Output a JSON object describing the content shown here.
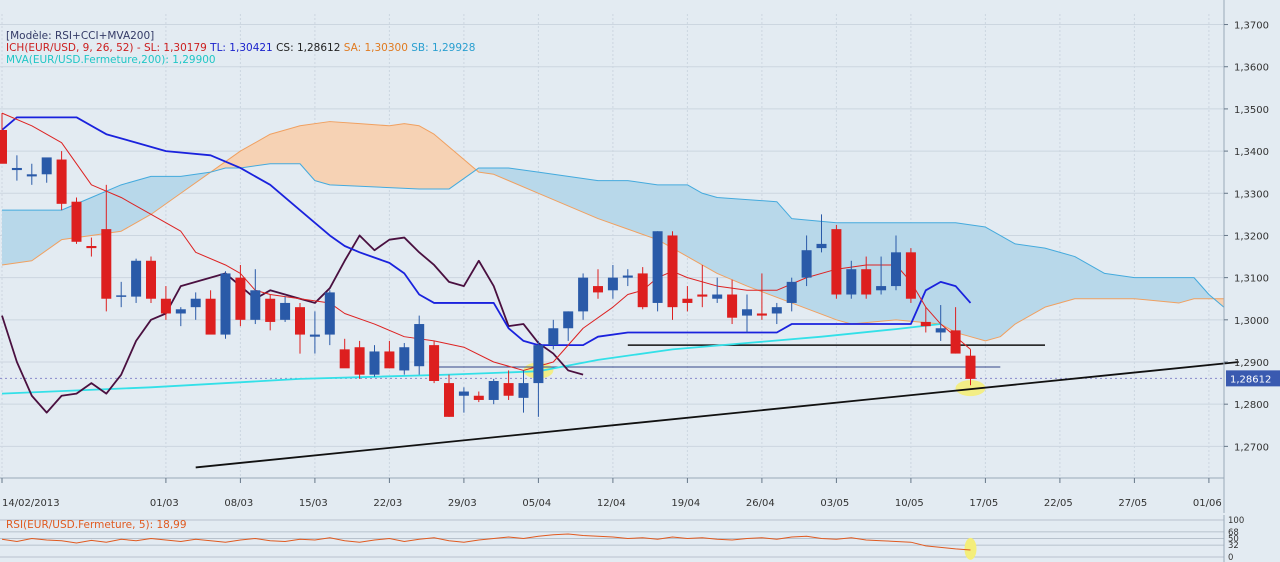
{
  "legend": {
    "model": "[Modèle: RSI+CCI+MVA200]",
    "ich": "ICH(EUR/USD, 9, 26, 52) -",
    "sl": "SL: 1,30179",
    "tl": "TL: 1,30421",
    "cs": "CS: 1,28612",
    "sa": "SA: 1,30300",
    "sb": "SB: 1,29928",
    "mva": "MVA(EUR/USD.Fermeture,200): 1,29900"
  },
  "rsi_legend": "RSI(EUR/USD.Fermeture, 5): 18,99",
  "colors": {
    "bull": "#2a5aa8",
    "bear": "#dd1f1f",
    "tenkan": "#dd2222",
    "kijun": "#1a22dd",
    "chikou": "#4a1040",
    "mva": "#33e0e8",
    "cloud_bull": "#b8d8ea",
    "cloud_bear": "#f6d2b4",
    "senkou_a": "#f0a060",
    "senkou_b": "#44aadd",
    "highlight": "#f4ee7a",
    "price_tag": "#3a5ab0"
  },
  "chart_data": {
    "type": "candlestick",
    "instrument": "EUR/USD",
    "ylim": [
      1.2625,
      1.3725
    ],
    "y_ticks": [
      "1,3700",
      "1,3600",
      "1,3500",
      "1,3400",
      "1,3300",
      "1,3200",
      "1,3100",
      "1,3000",
      "1,2900",
      "1,2800",
      "1,2700"
    ],
    "y_tick_values": [
      1.37,
      1.36,
      1.35,
      1.34,
      1.33,
      1.32,
      1.31,
      1.3,
      1.29,
      1.28,
      1.27
    ],
    "current_price_label": "1,28612",
    "current_price": 1.28612,
    "x_ticks": [
      {
        "label": "14/02/2013",
        "x": 0
      },
      {
        "label": "01/03",
        "x": 11
      },
      {
        "label": "08/03",
        "x": 16
      },
      {
        "label": "15/03",
        "x": 21
      },
      {
        "label": "22/03",
        "x": 26
      },
      {
        "label": "29/03",
        "x": 31
      },
      {
        "label": "05/04",
        "x": 36
      },
      {
        "label": "12/04",
        "x": 41
      },
      {
        "label": "19/04",
        "x": 46
      },
      {
        "label": "26/04",
        "x": 51
      },
      {
        "label": "03/05",
        "x": 56
      },
      {
        "label": "10/05",
        "x": 61
      },
      {
        "label": "17/05",
        "x": 66
      },
      {
        "label": "22/05",
        "x": 71
      },
      {
        "label": "27/05",
        "x": 76
      },
      {
        "label": "01/06",
        "x": 81
      }
    ],
    "candles": [
      {
        "o": 1.345,
        "h": 1.349,
        "l": 1.338,
        "c": 1.337
      },
      {
        "o": 1.3355,
        "h": 1.339,
        "l": 1.333,
        "c": 1.336
      },
      {
        "o": 1.334,
        "h": 1.337,
        "l": 1.332,
        "c": 1.3345
      },
      {
        "o": 1.3345,
        "h": 1.338,
        "l": 1.3325,
        "c": 1.3385
      },
      {
        "o": 1.338,
        "h": 1.34,
        "l": 1.326,
        "c": 1.3275
      },
      {
        "o": 1.328,
        "h": 1.329,
        "l": 1.318,
        "c": 1.3185
      },
      {
        "o": 1.3175,
        "h": 1.3195,
        "l": 1.315,
        "c": 1.317
      },
      {
        "o": 1.3215,
        "h": 1.332,
        "l": 1.302,
        "c": 1.305
      },
      {
        "o": 1.3055,
        "h": 1.309,
        "l": 1.303,
        "c": 1.3058
      },
      {
        "o": 1.3055,
        "h": 1.3145,
        "l": 1.304,
        "c": 1.314
      },
      {
        "o": 1.314,
        "h": 1.315,
        "l": 1.304,
        "c": 1.305
      },
      {
        "o": 1.305,
        "h": 1.308,
        "l": 1.3,
        "c": 1.3015
      },
      {
        "o": 1.3015,
        "h": 1.303,
        "l": 1.2985,
        "c": 1.3025
      },
      {
        "o": 1.303,
        "h": 1.3065,
        "l": 1.3,
        "c": 1.305
      },
      {
        "o": 1.305,
        "h": 1.307,
        "l": 1.297,
        "c": 1.2965
      },
      {
        "o": 1.2965,
        "h": 1.3115,
        "l": 1.2955,
        "c": 1.311
      },
      {
        "o": 1.31,
        "h": 1.313,
        "l": 1.2985,
        "c": 1.3
      },
      {
        "o": 1.3,
        "h": 1.312,
        "l": 1.299,
        "c": 1.307
      },
      {
        "o": 1.305,
        "h": 1.306,
        "l": 1.2975,
        "c": 1.2995
      },
      {
        "o": 1.3,
        "h": 1.3055,
        "l": 1.2995,
        "c": 1.304
      },
      {
        "o": 1.303,
        "h": 1.304,
        "l": 1.292,
        "c": 1.2965
      },
      {
        "o": 1.296,
        "h": 1.302,
        "l": 1.292,
        "c": 1.2965
      },
      {
        "o": 1.2965,
        "h": 1.307,
        "l": 1.294,
        "c": 1.3065
      },
      {
        "o": 1.293,
        "h": 1.2955,
        "l": 1.289,
        "c": 1.2885
      },
      {
        "o": 1.2935,
        "h": 1.295,
        "l": 1.286,
        "c": 1.287
      },
      {
        "o": 1.287,
        "h": 1.294,
        "l": 1.2865,
        "c": 1.2925
      },
      {
        "o": 1.2925,
        "h": 1.295,
        "l": 1.2885,
        "c": 1.2885
      },
      {
        "o": 1.288,
        "h": 1.2945,
        "l": 1.287,
        "c": 1.2935
      },
      {
        "o": 1.289,
        "h": 1.301,
        "l": 1.287,
        "c": 1.299
      },
      {
        "o": 1.294,
        "h": 1.295,
        "l": 1.285,
        "c": 1.2855
      },
      {
        "o": 1.285,
        "h": 1.287,
        "l": 1.277,
        "c": 1.277
      },
      {
        "o": 1.282,
        "h": 1.284,
        "l": 1.278,
        "c": 1.283
      },
      {
        "o": 1.282,
        "h": 1.283,
        "l": 1.2805,
        "c": 1.281
      },
      {
        "o": 1.281,
        "h": 1.286,
        "l": 1.28,
        "c": 1.2855
      },
      {
        "o": 1.285,
        "h": 1.288,
        "l": 1.281,
        "c": 1.282
      },
      {
        "o": 1.2815,
        "h": 1.288,
        "l": 1.278,
        "c": 1.285
      },
      {
        "o": 1.285,
        "h": 1.295,
        "l": 1.277,
        "c": 1.294
      },
      {
        "o": 1.294,
        "h": 1.3,
        "l": 1.293,
        "c": 1.298
      },
      {
        "o": 1.298,
        "h": 1.302,
        "l": 1.295,
        "c": 1.302
      },
      {
        "o": 1.302,
        "h": 1.311,
        "l": 1.3,
        "c": 1.31
      },
      {
        "o": 1.308,
        "h": 1.312,
        "l": 1.305,
        "c": 1.3065
      },
      {
        "o": 1.307,
        "h": 1.313,
        "l": 1.305,
        "c": 1.31
      },
      {
        "o": 1.31,
        "h": 1.312,
        "l": 1.308,
        "c": 1.3105
      },
      {
        "o": 1.311,
        "h": 1.3125,
        "l": 1.3025,
        "c": 1.303
      },
      {
        "o": 1.304,
        "h": 1.321,
        "l": 1.302,
        "c": 1.321
      },
      {
        "o": 1.32,
        "h": 1.321,
        "l": 1.3,
        "c": 1.303
      },
      {
        "o": 1.305,
        "h": 1.308,
        "l": 1.302,
        "c": 1.304
      },
      {
        "o": 1.306,
        "h": 1.313,
        "l": 1.303,
        "c": 1.3055
      },
      {
        "o": 1.305,
        "h": 1.31,
        "l": 1.304,
        "c": 1.306
      },
      {
        "o": 1.306,
        "h": 1.3095,
        "l": 1.299,
        "c": 1.3005
      },
      {
        "o": 1.301,
        "h": 1.306,
        "l": 1.297,
        "c": 1.3025
      },
      {
        "o": 1.3015,
        "h": 1.311,
        "l": 1.3,
        "c": 1.301
      },
      {
        "o": 1.3015,
        "h": 1.304,
        "l": 1.299,
        "c": 1.303
      },
      {
        "o": 1.304,
        "h": 1.31,
        "l": 1.302,
        "c": 1.309
      },
      {
        "o": 1.31,
        "h": 1.32,
        "l": 1.308,
        "c": 1.3165
      },
      {
        "o": 1.317,
        "h": 1.325,
        "l": 1.316,
        "c": 1.318
      },
      {
        "o": 1.3215,
        "h": 1.3225,
        "l": 1.305,
        "c": 1.306
      },
      {
        "o": 1.306,
        "h": 1.314,
        "l": 1.305,
        "c": 1.312
      },
      {
        "o": 1.312,
        "h": 1.315,
        "l": 1.305,
        "c": 1.306
      },
      {
        "o": 1.307,
        "h": 1.315,
        "l": 1.306,
        "c": 1.308
      },
      {
        "o": 1.308,
        "h": 1.32,
        "l": 1.307,
        "c": 1.316
      },
      {
        "o": 1.316,
        "h": 1.317,
        "l": 1.304,
        "c": 1.305
      },
      {
        "o": 1.2995,
        "h": 1.303,
        "l": 1.297,
        "c": 1.2985
      },
      {
        "o": 1.297,
        "h": 1.3035,
        "l": 1.295,
        "c": 1.298
      },
      {
        "o": 1.2975,
        "h": 1.303,
        "l": 1.292,
        "c": 1.292
      },
      {
        "o": 1.2915,
        "h": 1.293,
        "l": 1.2845,
        "c": 1.286
      }
    ],
    "tenkan": [
      [
        0,
        1.349
      ],
      [
        2,
        1.346
      ],
      [
        4,
        1.342
      ],
      [
        6,
        1.332
      ],
      [
        8,
        1.329
      ],
      [
        10,
        1.325
      ],
      [
        12,
        1.321
      ],
      [
        13,
        1.316
      ],
      [
        15,
        1.313
      ],
      [
        16,
        1.311
      ],
      [
        17,
        1.307
      ],
      [
        18,
        1.306
      ],
      [
        20,
        1.305
      ],
      [
        22,
        1.304
      ],
      [
        23,
        1.3015
      ],
      [
        25,
        1.299
      ],
      [
        27,
        1.296
      ],
      [
        29,
        1.295
      ],
      [
        31,
        1.2935
      ],
      [
        33,
        1.29
      ],
      [
        35,
        1.288
      ],
      [
        37,
        1.29
      ],
      [
        39,
        1.298
      ],
      [
        41,
        1.303
      ],
      [
        42,
        1.306
      ],
      [
        43,
        1.307
      ],
      [
        44,
        1.31
      ],
      [
        45,
        1.3115
      ],
      [
        46,
        1.31
      ],
      [
        48,
        1.308
      ],
      [
        50,
        1.307
      ],
      [
        52,
        1.307
      ],
      [
        54,
        1.31
      ],
      [
        56,
        1.312
      ],
      [
        58,
        1.313
      ],
      [
        60,
        1.313
      ],
      [
        61,
        1.309
      ],
      [
        62,
        1.303
      ],
      [
        63,
        1.299
      ],
      [
        64,
        1.296
      ],
      [
        65,
        1.293
      ]
    ],
    "kijun": [
      [
        0,
        1.345
      ],
      [
        1,
        1.348
      ],
      [
        5,
        1.348
      ],
      [
        7,
        1.344
      ],
      [
        9,
        1.342
      ],
      [
        11,
        1.34
      ],
      [
        14,
        1.339
      ],
      [
        16,
        1.336
      ],
      [
        18,
        1.332
      ],
      [
        20,
        1.326
      ],
      [
        22,
        1.32
      ],
      [
        23,
        1.3175
      ],
      [
        24,
        1.316
      ],
      [
        26,
        1.3135
      ],
      [
        27,
        1.311
      ],
      [
        28,
        1.306
      ],
      [
        29,
        1.304
      ],
      [
        33,
        1.304
      ],
      [
        34,
        1.298
      ],
      [
        35,
        1.295
      ],
      [
        36,
        1.294
      ],
      [
        39,
        1.294
      ],
      [
        40,
        1.296
      ],
      [
        42,
        1.297
      ],
      [
        52,
        1.297
      ],
      [
        53,
        1.299
      ],
      [
        61,
        1.299
      ],
      [
        62,
        1.307
      ],
      [
        63,
        1.309
      ],
      [
        64,
        1.308
      ],
      [
        65,
        1.304
      ]
    ],
    "chikou": [
      [
        0,
        1.301
      ],
      [
        1,
        1.29
      ],
      [
        2,
        1.282
      ],
      [
        3,
        1.278
      ],
      [
        4,
        1.282
      ],
      [
        5,
        1.2825
      ],
      [
        6,
        1.285
      ],
      [
        7,
        1.2825
      ],
      [
        8,
        1.287
      ],
      [
        9,
        1.295
      ],
      [
        10,
        1.3
      ],
      [
        11,
        1.3015
      ],
      [
        12,
        1.308
      ],
      [
        13,
        1.309
      ],
      [
        14,
        1.31
      ],
      [
        15,
        1.311
      ],
      [
        16,
        1.308
      ],
      [
        17,
        1.305
      ],
      [
        18,
        1.307
      ],
      [
        19,
        1.306
      ],
      [
        20,
        1.305
      ],
      [
        21,
        1.304
      ],
      [
        22,
        1.3075
      ],
      [
        23,
        1.314
      ],
      [
        24,
        1.32
      ],
      [
        25,
        1.3165
      ],
      [
        26,
        1.319
      ],
      [
        27,
        1.3195
      ],
      [
        28,
        1.316
      ],
      [
        29,
        1.313
      ],
      [
        30,
        1.309
      ],
      [
        31,
        1.308
      ],
      [
        32,
        1.314
      ],
      [
        33,
        1.308
      ],
      [
        34,
        1.2985
      ],
      [
        35,
        1.299
      ],
      [
        36,
        1.2945
      ],
      [
        37,
        1.292
      ],
      [
        38,
        1.288
      ],
      [
        39,
        1.287
      ]
    ],
    "mva200": [
      [
        0,
        1.2825
      ],
      [
        10,
        1.284
      ],
      [
        20,
        1.286
      ],
      [
        30,
        1.287
      ],
      [
        36,
        1.2878
      ],
      [
        40,
        1.2905
      ],
      [
        45,
        1.293
      ],
      [
        50,
        1.2945
      ],
      [
        55,
        1.296
      ],
      [
        60,
        1.2978
      ],
      [
        63,
        1.299
      ]
    ],
    "senkou_a": [
      [
        0,
        1.313
      ],
      [
        2,
        1.314
      ],
      [
        4,
        1.319
      ],
      [
        6,
        1.32
      ],
      [
        8,
        1.321
      ],
      [
        10,
        1.325
      ],
      [
        12,
        1.33
      ],
      [
        14,
        1.335
      ],
      [
        16,
        1.34
      ],
      [
        18,
        1.344
      ],
      [
        20,
        1.346
      ],
      [
        22,
        1.347
      ],
      [
        24,
        1.3465
      ],
      [
        26,
        1.346
      ],
      [
        27,
        1.3465
      ],
      [
        28,
        1.346
      ],
      [
        29,
        1.344
      ],
      [
        30,
        1.341
      ],
      [
        31,
        1.338
      ],
      [
        32,
        1.335
      ],
      [
        33,
        1.3345
      ],
      [
        34,
        1.333
      ],
      [
        36,
        1.33
      ],
      [
        38,
        1.327
      ],
      [
        40,
        1.324
      ],
      [
        42,
        1.3215
      ],
      [
        44,
        1.319
      ],
      [
        46,
        1.315
      ],
      [
        48,
        1.311
      ],
      [
        50,
        1.308
      ],
      [
        53,
        1.304
      ],
      [
        56,
        1.3
      ],
      [
        57,
        1.299
      ],
      [
        60,
        1.3
      ],
      [
        63,
        1.299
      ],
      [
        64,
        1.297
      ],
      [
        65,
        1.296
      ],
      [
        66,
        1.295
      ],
      [
        67,
        1.296
      ],
      [
        68,
        1.299
      ],
      [
        70,
        1.303
      ],
      [
        72,
        1.305
      ],
      [
        76,
        1.305
      ],
      [
        79,
        1.304
      ],
      [
        80,
        1.305
      ],
      [
        82,
        1.305
      ]
    ],
    "senkou_b": [
      [
        0,
        1.326
      ],
      [
        4,
        1.326
      ],
      [
        6,
        1.329
      ],
      [
        8,
        1.332
      ],
      [
        10,
        1.334
      ],
      [
        12,
        1.334
      ],
      [
        14,
        1.335
      ],
      [
        15,
        1.336
      ],
      [
        16,
        1.336
      ],
      [
        18,
        1.337
      ],
      [
        20,
        1.337
      ],
      [
        21,
        1.333
      ],
      [
        22,
        1.332
      ],
      [
        28,
        1.331
      ],
      [
        30,
        1.331
      ],
      [
        32,
        1.336
      ],
      [
        34,
        1.336
      ],
      [
        36,
        1.335
      ],
      [
        38,
        1.334
      ],
      [
        40,
        1.333
      ],
      [
        42,
        1.333
      ],
      [
        44,
        1.332
      ],
      [
        46,
        1.332
      ],
      [
        47,
        1.33
      ],
      [
        48,
        1.329
      ],
      [
        52,
        1.328
      ],
      [
        53,
        1.324
      ],
      [
        56,
        1.323
      ],
      [
        60,
        1.323
      ],
      [
        64,
        1.323
      ],
      [
        66,
        1.322
      ],
      [
        68,
        1.318
      ],
      [
        70,
        1.317
      ],
      [
        72,
        1.315
      ],
      [
        74,
        1.311
      ],
      [
        76,
        1.31
      ],
      [
        80,
        1.31
      ],
      [
        81,
        1.306
      ],
      [
        82,
        1.303
      ]
    ],
    "trendline": [
      [
        13,
        1.265
      ],
      [
        83,
        1.29
      ]
    ],
    "horizontal_lines": [
      {
        "from": 42,
        "to": 70,
        "y": 1.294,
        "color": "#111111"
      },
      {
        "from": 29,
        "to": 67,
        "y": 1.2888,
        "color": "#334488"
      }
    ],
    "highlights": [
      [
        36,
        1.288
      ],
      [
        65,
        1.2838
      ]
    ],
    "rsi": {
      "ylim": [
        0,
        100
      ],
      "y_ticks": [
        "100",
        "68",
        "50",
        "32",
        "0"
      ],
      "y_tick_values": [
        100,
        68,
        50,
        32,
        0
      ],
      "values": [
        48,
        42,
        50,
        46,
        44,
        38,
        45,
        40,
        48,
        44,
        50,
        46,
        42,
        48,
        44,
        40,
        46,
        50,
        44,
        42,
        48,
        46,
        52,
        44,
        40,
        46,
        50,
        42,
        48,
        52,
        44,
        40,
        46,
        50,
        54,
        50,
        56,
        60,
        62,
        58,
        56,
        54,
        50,
        52,
        48,
        54,
        50,
        52,
        48,
        46,
        50,
        52,
        48,
        54,
        56,
        50,
        48,
        52,
        46,
        44,
        42,
        40,
        30,
        26,
        22,
        19
      ]
    }
  }
}
